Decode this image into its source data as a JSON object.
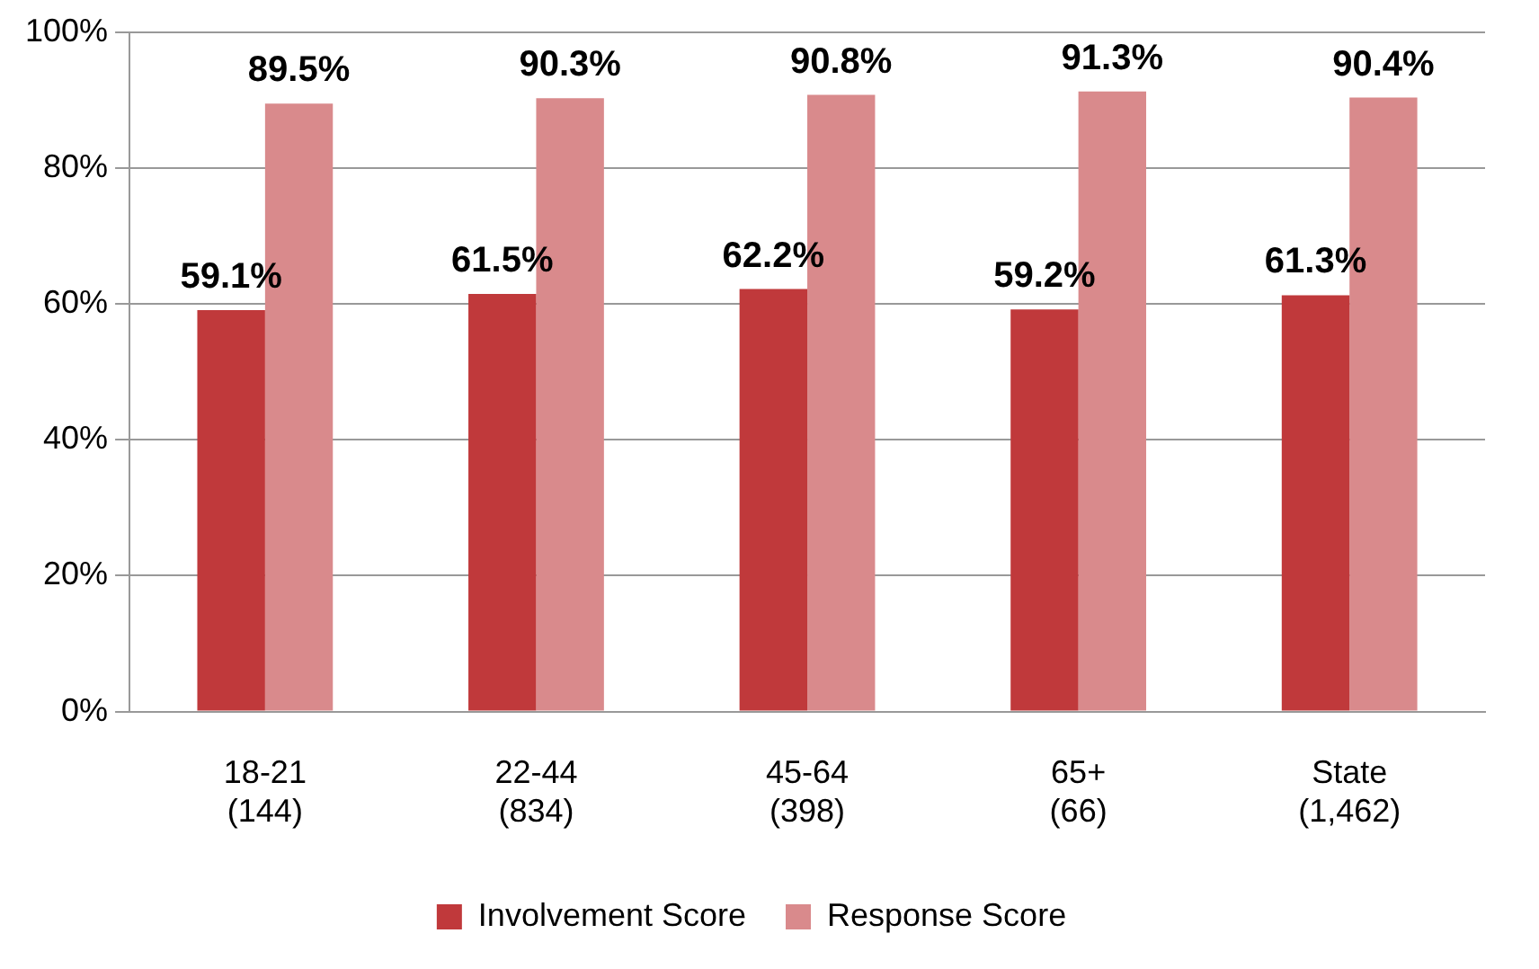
{
  "chart_data": {
    "type": "bar",
    "categories": [
      "18-21\n(144)",
      "22-44\n(834)",
      "45-64\n(398)",
      "65+\n(66)",
      "State\n(1,462)"
    ],
    "series": [
      {
        "name": "Involvement Score",
        "color": "#c0393b",
        "values": [
          59.1,
          61.5,
          62.2,
          59.2,
          61.3
        ],
        "value_labels": [
          "59.1%",
          "61.5%",
          "62.2%",
          "59.2%",
          "61.3%"
        ]
      },
      {
        "name": "Response Score",
        "color": "#d98a8c",
        "values": [
          89.5,
          90.3,
          90.8,
          91.3,
          90.4
        ],
        "value_labels": [
          "89.5%",
          "90.3%",
          "90.8%",
          "91.3%",
          "90.4%"
        ]
      }
    ],
    "ylim": [
      0,
      100
    ],
    "yticks": [
      {
        "value": 0,
        "label": "0%"
      },
      {
        "value": 20,
        "label": "20%"
      },
      {
        "value": 40,
        "label": "40%"
      },
      {
        "value": 60,
        "label": "60%"
      },
      {
        "value": 80,
        "label": "80%"
      },
      {
        "value": 100,
        "label": "100%"
      }
    ],
    "grid": "y",
    "legend": "bottom"
  }
}
